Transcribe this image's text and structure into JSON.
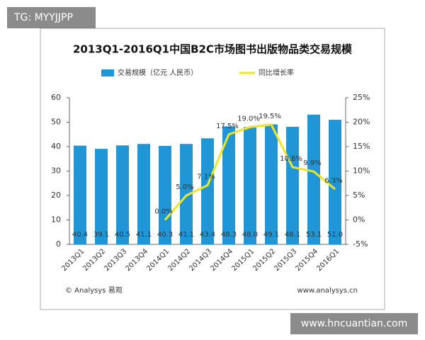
{
  "watermark_top": "TG: MYYJJPP",
  "watermark_bottom": "www.hncuantian.com",
  "footer": {
    "left": "© Analysys 易观",
    "right": "www.analysys.cn"
  },
  "chart_data": {
    "type": "bar",
    "title": "2013Q1-2016Q1中国B2C市场图书出版物品类交易规模",
    "categories": [
      "2013Q1",
      "2013Q2",
      "2013Q3",
      "2013Q4",
      "2014Q1",
      "2014Q2",
      "2014Q3",
      "2014Q4",
      "2015Q1",
      "2015Q2",
      "2015Q3",
      "2015Q4",
      "2016Q1"
    ],
    "series": [
      {
        "name": "交易规模（亿元 人民币）",
        "type": "bar",
        "color": "#2196d6",
        "values": [
          40.4,
          39.1,
          40.5,
          41.1,
          40.3,
          41.1,
          43.4,
          48.3,
          48.0,
          49.1,
          48.1,
          53.1,
          51.0
        ],
        "value_labels": [
          "40.4",
          "39.1",
          "40.5",
          "41.1",
          "40.3",
          "41.1",
          "43.4",
          "48.3",
          "48.0",
          "49.1",
          "48.1",
          "53.1",
          "51.0"
        ]
      },
      {
        "name": "同比增长率",
        "type": "line",
        "axis": "y2",
        "color": "#ece528",
        "values": [
          null,
          null,
          null,
          null,
          0,
          5,
          7.1,
          17.5,
          19,
          19.5,
          10.8,
          9.9,
          6.3
        ],
        "value_labels": [
          null,
          null,
          null,
          null,
          "0.0%",
          "5.0%",
          "7.1%",
          "17.5%",
          "19.0%",
          "19.5%",
          "10.8%",
          "9.9%",
          "6.3%"
        ]
      }
    ],
    "ylim": [
      0,
      60
    ],
    "yticks": [
      0,
      10,
      20,
      30,
      40,
      50,
      60
    ],
    "y2lim": [
      -5,
      25
    ],
    "y2ticks": [
      {
        "value": -5,
        "label": "-5%"
      },
      {
        "value": 0,
        "label": "0%"
      },
      {
        "value": 5,
        "label": "5%"
      },
      {
        "value": 10,
        "label": "10%"
      },
      {
        "value": 15,
        "label": "15%"
      },
      {
        "value": 20,
        "label": "20%"
      },
      {
        "value": 25,
        "label": "25%"
      }
    ]
  }
}
